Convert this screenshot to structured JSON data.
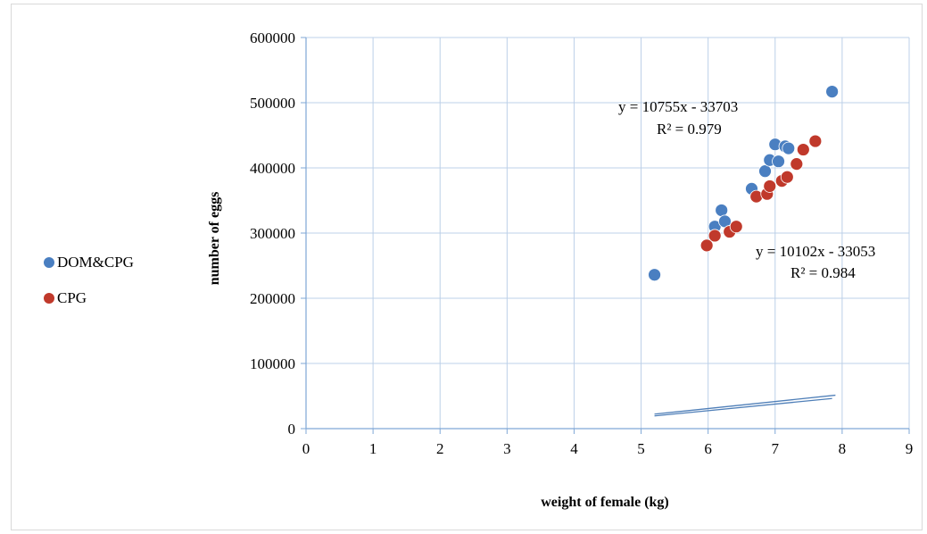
{
  "chart_data": {
    "type": "scatter",
    "xlabel": "weight  of female (kg)",
    "ylabel": "number of eggs",
    "xlim": [
      0,
      9
    ],
    "ylim": [
      0,
      600000
    ],
    "xticks": [
      "0",
      "1",
      "2",
      "3",
      "4",
      "5",
      "6",
      "7",
      "8",
      "9"
    ],
    "yticks": [
      "0",
      "100000",
      "200000",
      "300000",
      "400000",
      "500000",
      "600000"
    ],
    "grid": true,
    "legend_position": "left",
    "series": [
      {
        "name": "DOM&CPG",
        "color": "#4a7fc1",
        "points": [
          [
            5.2,
            236000
          ],
          [
            6.1,
            310000
          ],
          [
            6.2,
            335000
          ],
          [
            6.25,
            318000
          ],
          [
            6.65,
            368000
          ],
          [
            6.85,
            395000
          ],
          [
            6.92,
            412000
          ],
          [
            7.0,
            436000
          ],
          [
            7.05,
            410000
          ],
          [
            7.15,
            433000
          ],
          [
            7.2,
            430000
          ],
          [
            7.85,
            517000
          ]
        ],
        "trendline": {
          "slope": 10755,
          "intercept": -33703,
          "x_range": [
            5.2,
            7.9
          ]
        },
        "equation": "y = 10755x - 33703",
        "r2": "R² = 0.979"
      },
      {
        "name": "CPG",
        "color": "#c0392b",
        "points": [
          [
            5.98,
            281000
          ],
          [
            6.1,
            296000
          ],
          [
            6.32,
            302000
          ],
          [
            6.42,
            310000
          ],
          [
            6.72,
            356000
          ],
          [
            6.88,
            360000
          ],
          [
            6.92,
            372000
          ],
          [
            7.1,
            380000
          ],
          [
            7.18,
            386000
          ],
          [
            7.32,
            406000
          ],
          [
            7.42,
            428000
          ],
          [
            7.6,
            441000
          ]
        ],
        "trendline": {
          "slope": 10102,
          "intercept": -33053,
          "x_range": [
            5.2,
            7.85
          ]
        },
        "equation": "y = 10102x - 33053",
        "r2": "R² = 0.984"
      }
    ]
  }
}
